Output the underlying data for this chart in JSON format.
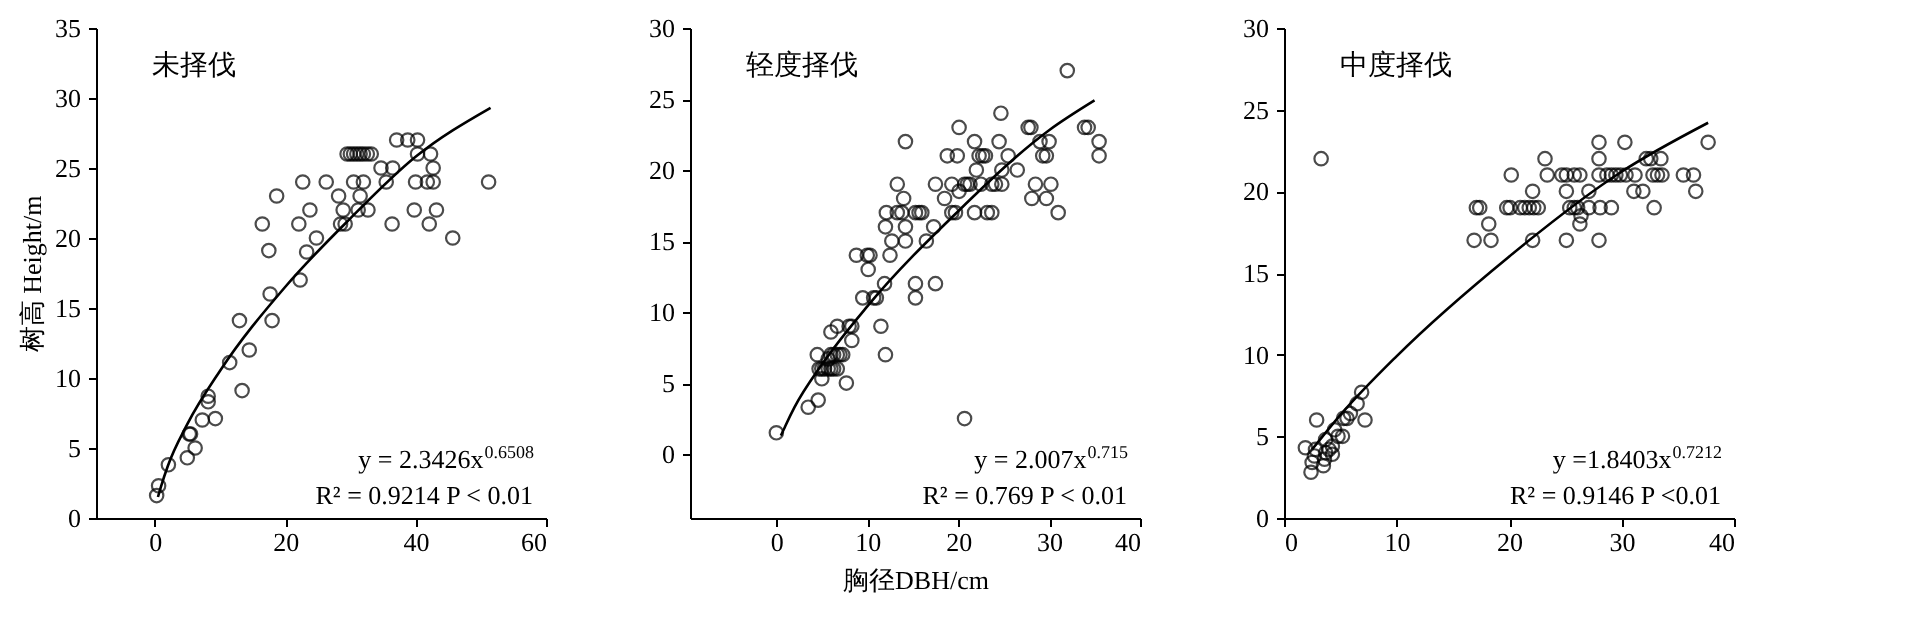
{
  "chart_data": [
    {
      "type": "scatter",
      "title": "未择伐",
      "ylabel": "树高 Height/m",
      "grid": false,
      "xlim": [
        -9,
        60
      ],
      "xticks": [
        0,
        20,
        40,
        60
      ],
      "ylim": [
        0,
        35
      ],
      "yticks": [
        0,
        5,
        10,
        15,
        20,
        25,
        30,
        35
      ],
      "annotations": [
        "y = 2.3426x$^{0.6508}$",
        "R² = 0.9214    P < 0.01"
      ],
      "series": [
        {
          "type": "scatter",
          "marker": "circle",
          "color": "#000000",
          "x": [
            0.3,
            0.6,
            2.1,
            5,
            5.3,
            5.5,
            6.2,
            7.3,
            8.2,
            8.2,
            9.3,
            11.5,
            13,
            13.4,
            14.5,
            16.5,
            17.5,
            17.7,
            18,
            18.7,
            22.1,
            22.3,
            22.7,
            23.3,
            23.8,
            24.8,
            26.3,
            28.2,
            28.5,
            28.9,
            29.2,
            29.5,
            30,
            30.5,
            31,
            31.5,
            32,
            32.6,
            33.2,
            30.5,
            31.2,
            31.5,
            32,
            32.7,
            34.7,
            35.5,
            36.4,
            36.5,
            37.1,
            38.8,
            39.8,
            40,
            40.3,
            40.3,
            42.3,
            42.1,
            41.8,
            42.7,
            42.7,
            43.2,
            45.7,
            51.2
          ],
          "values": [
            1.6,
            2.3,
            3.8,
            4.3,
            6,
            6,
            5,
            7,
            8.7,
            8.3,
            7.1,
            11.1,
            14.1,
            9.1,
            12,
            21,
            19.1,
            16,
            14.1,
            23,
            21,
            17,
            24,
            19,
            22,
            20,
            24,
            23,
            21,
            22,
            21,
            26,
            26,
            26,
            26,
            26,
            26,
            26,
            26,
            24,
            22,
            23,
            24,
            22,
            25,
            24,
            21,
            25,
            27,
            27,
            22,
            24,
            27,
            26,
            26,
            21,
            24,
            24,
            25,
            22,
            20,
            24
          ]
        },
        {
          "type": "line",
          "color": "#000000",
          "x": [
            0.5,
            1,
            2,
            5,
            10,
            20,
            30,
            40,
            51.5
          ],
          "values": [
            1.5,
            2.3,
            3.7,
            6.7,
            10.5,
            16.5,
            21.4,
            25.8,
            29.3
          ]
        }
      ]
    },
    {
      "type": "scatter",
      "title": "轻度择伐",
      "xlabel": "胸径DBH/cm",
      "grid": false,
      "xlim": [
        -9.5,
        40
      ],
      "xticks": [
        0,
        10,
        20,
        30,
        40
      ],
      "ylim": [
        -4.5,
        30
      ],
      "yticks": [
        0,
        5,
        10,
        15,
        20,
        25,
        30
      ],
      "annotations": [
        "y = 2.007x$^{0.715}$",
        "R² = 0.769    P < 0.01"
      ],
      "series": [
        {
          "type": "scatter",
          "marker": "circle",
          "color": "#000000",
          "x": [
            0,
            3.5,
            4.6,
            4.5,
            4.7,
            5,
            5.3,
            5.7,
            6,
            6.3,
            6.7,
            5,
            5.7,
            6,
            6.3,
            6.7,
            7,
            7.3,
            6,
            6.7,
            7.7,
            8,
            8.3,
            8.3,
            8.8,
            9.5,
            10,
            10.3,
            10.1,
            10.7,
            11,
            11.5,
            11.9,
            12,
            12,
            12.1,
            12.5,
            12.7,
            13.3,
            13.3,
            13.8,
            14,
            14.2,
            14.2,
            14.2,
            15.3,
            15.7,
            16,
            15.3,
            15.3,
            16.5,
            17.3,
            17.5,
            17.5,
            18.5,
            18.8,
            19.3,
            19.3,
            19.7,
            19.9,
            20.1,
            20.1,
            20.7,
            21,
            21.3,
            20.7,
            21.8,
            21.8,
            22,
            22.3,
            22.7,
            23,
            22.5,
            23.2,
            23.7,
            23.7,
            24.1,
            24.5,
            24.7,
            24.8,
            24.8,
            25.5,
            26.5,
            27.7,
            28,
            28.1,
            28.5,
            29,
            29.3,
            29.7,
            29.7,
            30,
            30.2,
            31,
            32,
            33.9,
            34.3,
            35.5,
            35.5
          ],
          "values": [
            1.5,
            3.3,
            3.8,
            7,
            6,
            6,
            6,
            6,
            6,
            6,
            6,
            5.3,
            6.7,
            7,
            7,
            7,
            7,
            7,
            8.6,
            9,
            5,
            9,
            9,
            8,
            14,
            11,
            14,
            14,
            13,
            11,
            11,
            9,
            12,
            7,
            16,
            17,
            14,
            15,
            19,
            17,
            17,
            18,
            16,
            15,
            22,
            17,
            17,
            17,
            12,
            11,
            15,
            16,
            19,
            12,
            18,
            21,
            19,
            17,
            17,
            21,
            23,
            18.5,
            19,
            19,
            19,
            2.5,
            22,
            17,
            20,
            21,
            21,
            21,
            19,
            17,
            19,
            17,
            19,
            22,
            24,
            20,
            19,
            21,
            20,
            23,
            23,
            18,
            19,
            22,
            21,
            21,
            18,
            22,
            19,
            17,
            27,
            23,
            23,
            22,
            21
          ]
        },
        {
          "type": "line",
          "color": "#000000",
          "x": [
            0.5,
            1,
            2,
            5,
            10,
            20,
            30,
            35
          ],
          "values": [
            1.3,
            2,
            3.3,
            6.3,
            10.4,
            17.1,
            22.8,
            24.9
          ]
        }
      ]
    },
    {
      "type": "scatter",
      "title": "中度择伐",
      "grid": false,
      "xlim": [
        0,
        40
      ],
      "xticks": [
        0,
        10,
        20,
        30,
        40
      ],
      "ylim": [
        0,
        30
      ],
      "yticks": [
        0,
        5,
        10,
        15,
        20,
        25,
        30
      ],
      "annotations": [
        "y =1.8403x$^{0.7212}$",
        "R² = 0.9146    P <0.01"
      ],
      "series": [
        {
          "type": "scatter",
          "marker": "circle",
          "color": "#000000",
          "x": [
            1.9,
            2.4,
            2.5,
            2.7,
            2.8,
            2.9,
            3.3,
            3.5,
            3.6,
            3.7,
            4,
            3.7,
            4.3,
            4.3,
            4.5,
            4.8,
            5.2,
            5.3,
            5.6,
            5.9,
            6.5,
            6.9,
            7.2,
            16.9,
            17.1,
            17.4,
            18.2,
            18.4,
            19.8,
            20.1,
            20.2,
            21,
            21.4,
            21.8,
            22.2,
            22.6,
            22.1,
            22.1,
            23.2,
            23.4,
            24.7,
            25.1,
            25.1,
            25.1,
            25.4,
            25.8,
            26.1,
            25.8,
            26.3,
            26.3,
            26.4,
            27.1,
            27.1,
            28,
            28,
            28,
            28,
            28.1,
            28.7,
            29.1,
            29.5,
            29.9,
            29.1,
            30.3,
            30.4,
            31.1,
            31.2,
            31.9,
            32.2,
            32.6,
            32.8,
            32.9,
            33.2,
            33.5,
            33.6,
            35.5,
            36.4,
            36.6,
            37.7
          ],
          "values": [
            4.3,
            2.8,
            3.4,
            3.8,
            4.2,
            6,
            22,
            3.2,
            3.6,
            4,
            4.2,
            4.8,
            4.4,
            3.9,
            5.4,
            5,
            5,
            6.1,
            6.1,
            6.4,
            7,
            7.7,
            6,
            17,
            19,
            19,
            18,
            17,
            19,
            19,
            21,
            19,
            19,
            19,
            19,
            19,
            20,
            17,
            22,
            21,
            21,
            21,
            17,
            20,
            19,
            19,
            19,
            21,
            21,
            18,
            18.5,
            20,
            19,
            17,
            23,
            22,
            21,
            19,
            21,
            19,
            21,
            21,
            21,
            23,
            21,
            20,
            21,
            20,
            22,
            22,
            21,
            19,
            21,
            22,
            21,
            21,
            21,
            20,
            23
          ]
        },
        {
          "type": "line",
          "color": "#000000",
          "x": [
            2.5,
            5,
            10,
            20,
            30,
            37.7
          ],
          "values": [
            4.2,
            6.3,
            9.9,
            16,
            21.2,
            24.2
          ]
        }
      ]
    }
  ]
}
